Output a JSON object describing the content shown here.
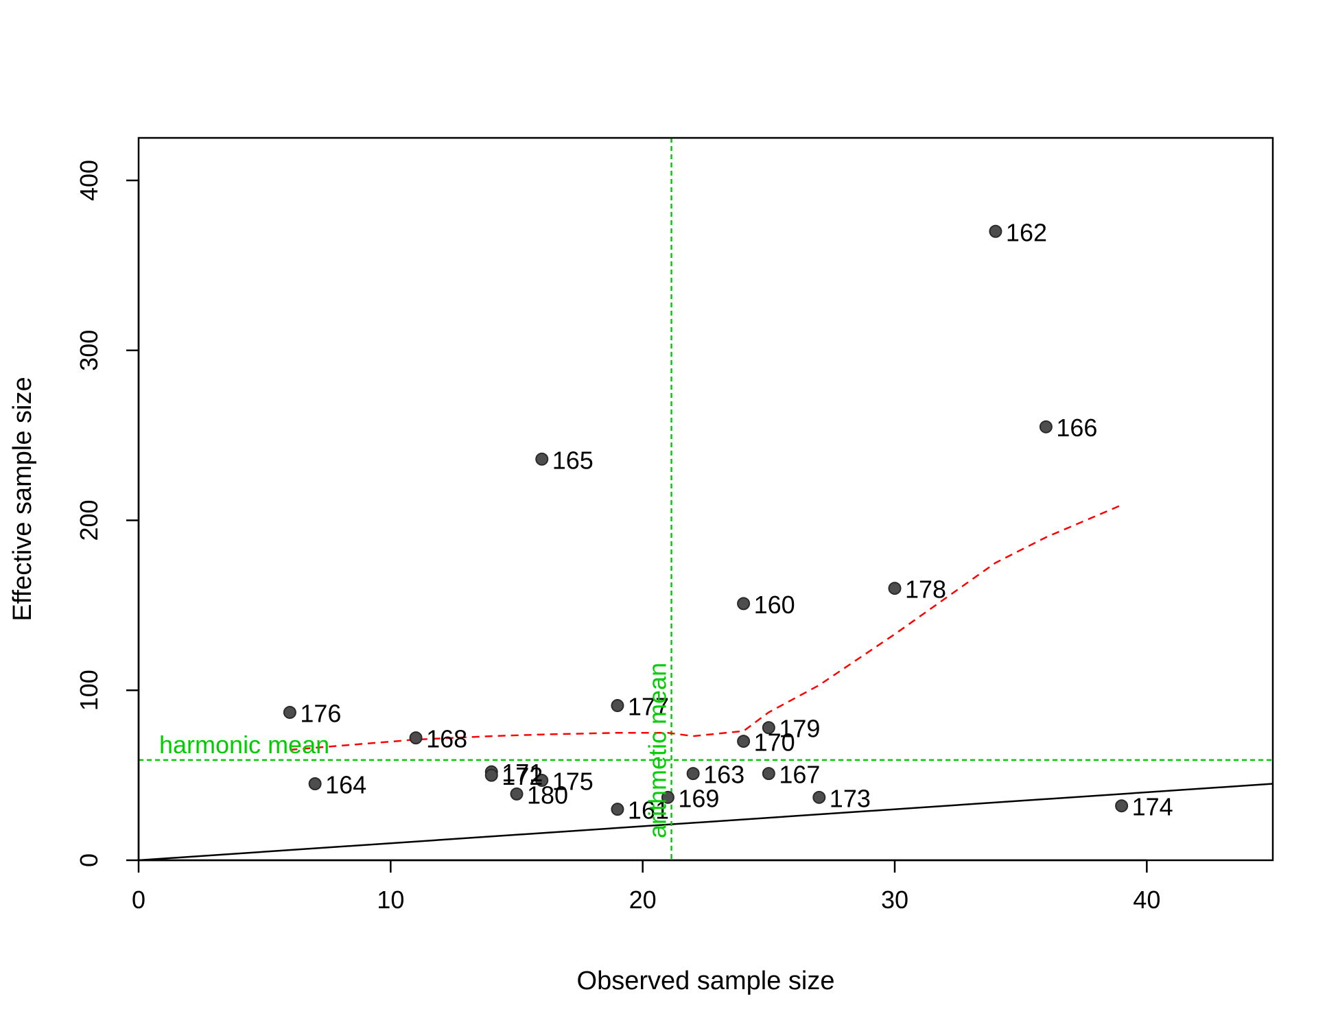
{
  "chart_data": {
    "type": "scatter",
    "title": "",
    "xlabel": "Observed sample size",
    "ylabel": "Effective sample size",
    "xlim": [
      0,
      45
    ],
    "ylim": [
      0,
      425
    ],
    "xticks": [
      "0",
      "10",
      "20",
      "30",
      "40"
    ],
    "yticks": [
      "0",
      "100",
      "200",
      "300",
      "400"
    ],
    "grid": false,
    "points": [
      {
        "label": "160",
        "x": 24,
        "y": 151
      },
      {
        "label": "161",
        "x": 19,
        "y": 30
      },
      {
        "label": "162",
        "x": 34,
        "y": 370
      },
      {
        "label": "163",
        "x": 22,
        "y": 51
      },
      {
        "label": "164",
        "x": 7,
        "y": 45
      },
      {
        "label": "165",
        "x": 16,
        "y": 236
      },
      {
        "label": "166",
        "x": 36,
        "y": 255
      },
      {
        "label": "167",
        "x": 25,
        "y": 51
      },
      {
        "label": "168",
        "x": 11,
        "y": 72
      },
      {
        "label": "169",
        "x": 21,
        "y": 37
      },
      {
        "label": "170",
        "x": 24,
        "y": 70
      },
      {
        "label": "171",
        "x": 14,
        "y": 52
      },
      {
        "label": "172",
        "x": 14,
        "y": 50
      },
      {
        "label": "173",
        "x": 27,
        "y": 37
      },
      {
        "label": "174",
        "x": 39,
        "y": 32
      },
      {
        "label": "175",
        "x": 16,
        "y": 47
      },
      {
        "label": "176",
        "x": 6,
        "y": 87
      },
      {
        "label": "177",
        "x": 19,
        "y": 91
      },
      {
        "label": "178",
        "x": 30,
        "y": 160
      },
      {
        "label": "179",
        "x": 25,
        "y": 78
      },
      {
        "label": "180",
        "x": 15,
        "y": 39
      }
    ],
    "smooth_line": {
      "style": "dashed",
      "color": "#ff0000",
      "x": [
        6,
        11,
        14,
        16,
        19,
        21,
        22,
        24,
        25,
        27,
        30,
        34,
        36,
        39
      ],
      "y": [
        65,
        71,
        73,
        74,
        75,
        75,
        73,
        76,
        87,
        103,
        133,
        175,
        190,
        209
      ]
    },
    "identity_line": {
      "color": "#000000",
      "from": [
        0,
        0
      ],
      "to": [
        45,
        45
      ]
    },
    "arithmetic_mean": {
      "label": "arithmetic mean",
      "value": 21.14,
      "color": "#00cc00"
    },
    "harmonic_mean": {
      "label": "harmonic mean",
      "value": 59,
      "color": "#00cc00"
    },
    "point_color": "#4d4d4d"
  }
}
